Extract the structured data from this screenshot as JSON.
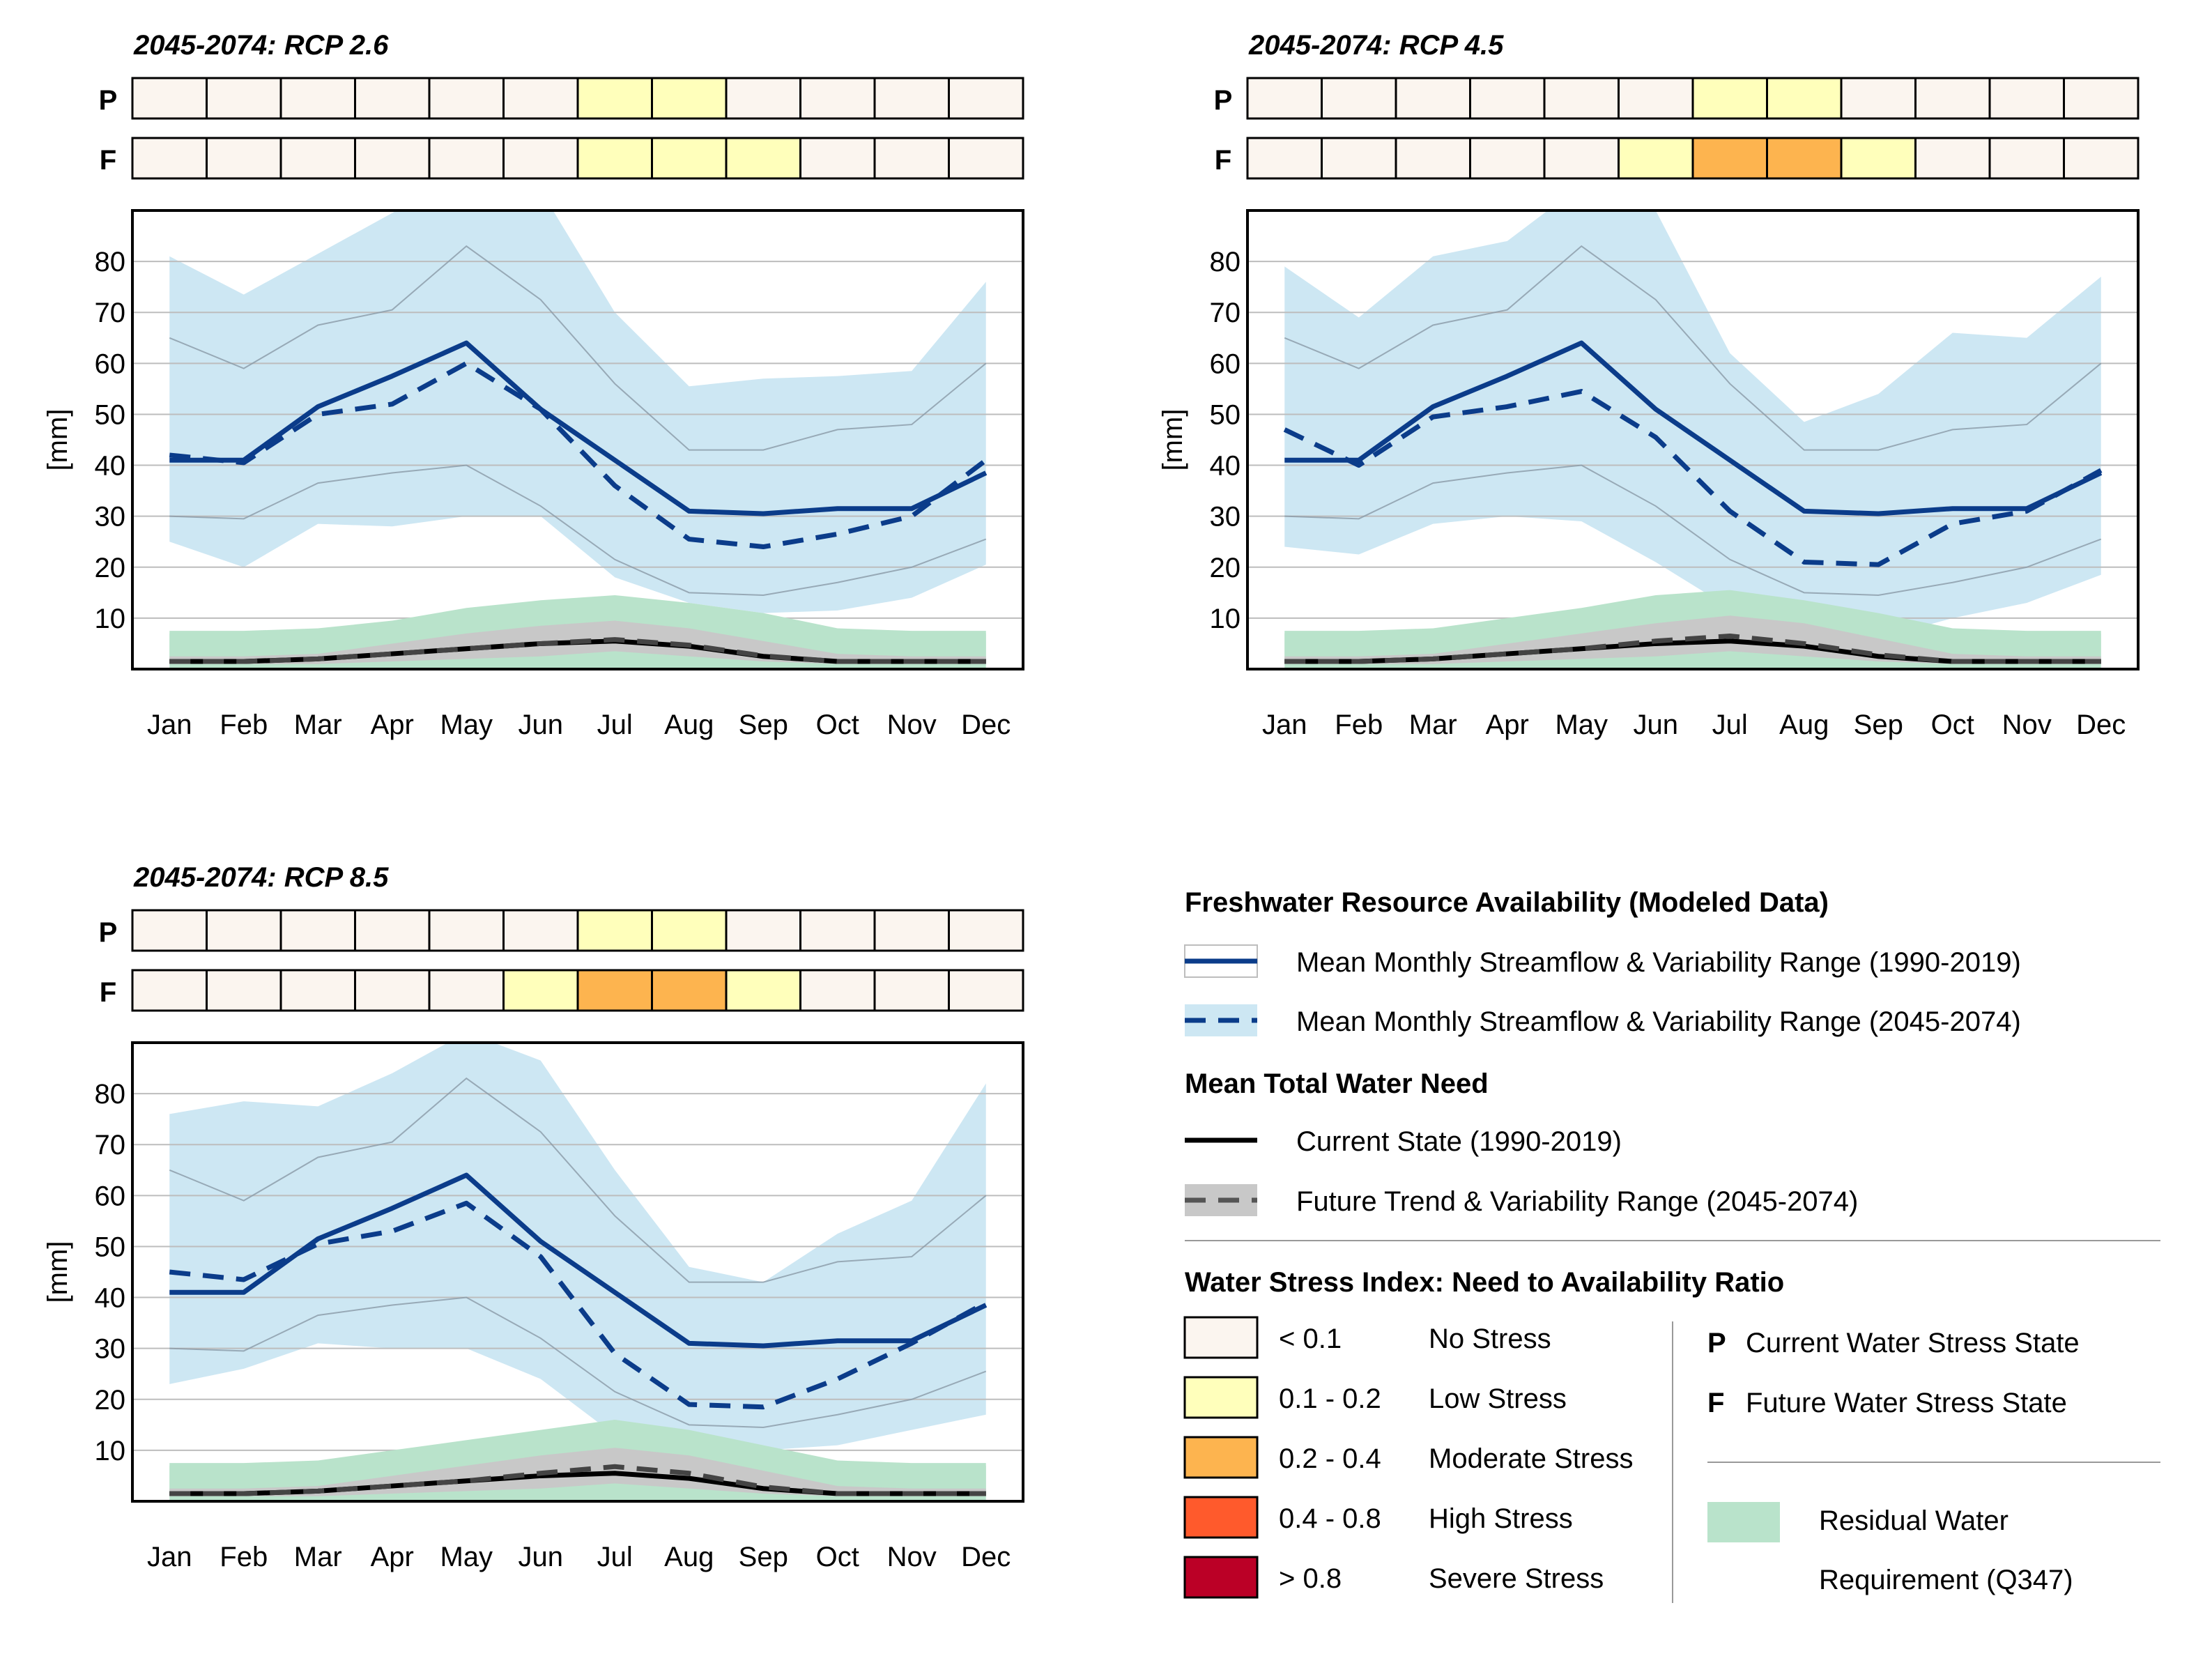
{
  "months": [
    "Jan",
    "Feb",
    "Mar",
    "Apr",
    "May",
    "Jun",
    "Jul",
    "Aug",
    "Sep",
    "Oct",
    "Nov",
    "Dec"
  ],
  "colors": {
    "no_stress": "#fbf5ef",
    "low_stress": "#ffffbb",
    "moderate_stress": "#fdb44f",
    "high_stress": "#ff5a2c",
    "severe_stress": "#bb0026",
    "streamflow": "#0b3c8a",
    "streamflow_range": "#cde7f3",
    "residual": "#b9e3cb",
    "need_range": "#c8c8c8",
    "grid": "#bdbdbd"
  },
  "chart_data": [
    {
      "type": "line",
      "title": "2045-2074: RCP 2.6",
      "ylabel": "[mm]",
      "ylim": [
        0,
        90
      ],
      "yticks": [
        10,
        20,
        30,
        40,
        50,
        60,
        70,
        80
      ],
      "grid": true,
      "categories": [
        "Jan",
        "Feb",
        "Mar",
        "Apr",
        "May",
        "Jun",
        "Jul",
        "Aug",
        "Sep",
        "Oct",
        "Nov",
        "Dec"
      ],
      "stress_rows": [
        {
          "label": "P",
          "levels": [
            0,
            0,
            0,
            0,
            0,
            0,
            1,
            1,
            0,
            0,
            0,
            0
          ]
        },
        {
          "label": "F",
          "levels": [
            0,
            0,
            0,
            0,
            0,
            0,
            1,
            1,
            1,
            0,
            0,
            0
          ]
        }
      ],
      "series": [
        {
          "name": "Mean Monthly Streamflow & Variability Range (1990-2019)",
          "style": "solid",
          "values": [
            41,
            41,
            51.5,
            57.5,
            64,
            51,
            41,
            31,
            30.5,
            31.5,
            31.5,
            38.5
          ]
        },
        {
          "name": "Historic variability range (thin lines)",
          "style": "thin",
          "upper": [
            65,
            59,
            67.5,
            70.5,
            83,
            72.5,
            56,
            43,
            43,
            47,
            48,
            60
          ],
          "lower": [
            30,
            29.5,
            36.5,
            38.5,
            40,
            32,
            21.5,
            15,
            14.5,
            17,
            20,
            25.5
          ]
        },
        {
          "name": "Mean Monthly Streamflow & Variability Range (2045-2074)",
          "style": "dashed",
          "values": [
            42,
            40.5,
            50,
            52,
            60,
            51,
            36,
            25.5,
            24,
            26.5,
            30,
            41
          ],
          "upper": [
            81,
            73.5,
            81.5,
            89.5,
            97,
            94,
            70,
            55.5,
            57,
            57.5,
            58.5,
            76
          ],
          "lower": [
            25,
            20,
            28.5,
            28,
            30,
            30,
            18,
            13,
            11,
            11.5,
            14,
            20.5
          ]
        },
        {
          "name": "Residual Water Requirement (Q347)",
          "values": [
            7,
            7,
            7,
            7,
            7,
            7,
            7,
            7,
            7,
            7,
            7,
            7
          ]
        },
        {
          "name": "Future need range upper (green)",
          "values": [
            7.5,
            7.5,
            8,
            9.5,
            12,
            13.5,
            14.5,
            13,
            11,
            8,
            7.5,
            7.5
          ]
        },
        {
          "name": "Future need range upper (grey)",
          "values": [
            2.5,
            2.5,
            3,
            5,
            7,
            8.5,
            9.5,
            8,
            5.5,
            3,
            2.5,
            2.5
          ]
        },
        {
          "name": "Future need range lower",
          "values": [
            1,
            1,
            1,
            1.5,
            2,
            2.5,
            3.5,
            2.5,
            1.5,
            1,
            1,
            1
          ]
        },
        {
          "name": "Current State (1990-2019)",
          "style": "need-solid",
          "values": [
            1.5,
            1.5,
            2,
            3,
            4,
            5,
            5.5,
            4.5,
            2.5,
            1.5,
            1.5,
            1.5
          ]
        },
        {
          "name": "Future Trend & Variability Range (2045-2074)",
          "style": "need-dashed",
          "values": [
            1.5,
            1.5,
            2,
            3,
            4,
            5,
            5.8,
            4.7,
            2.6,
            1.5,
            1.5,
            1.5
          ]
        }
      ]
    },
    {
      "type": "line",
      "title": "2045-2074: RCP 4.5",
      "ylabel": "[mm]",
      "ylim": [
        0,
        90
      ],
      "yticks": [
        10,
        20,
        30,
        40,
        50,
        60,
        70,
        80
      ],
      "grid": true,
      "categories": [
        "Jan",
        "Feb",
        "Mar",
        "Apr",
        "May",
        "Jun",
        "Jul",
        "Aug",
        "Sep",
        "Oct",
        "Nov",
        "Dec"
      ],
      "stress_rows": [
        {
          "label": "P",
          "levels": [
            0,
            0,
            0,
            0,
            0,
            0,
            1,
            1,
            0,
            0,
            0,
            0
          ]
        },
        {
          "label": "F",
          "levels": [
            0,
            0,
            0,
            0,
            0,
            1,
            2,
            2,
            1,
            0,
            0,
            0
          ]
        }
      ],
      "series": [
        {
          "name": "Mean Monthly Streamflow & Variability Range (1990-2019)",
          "style": "solid",
          "values": [
            41,
            41,
            51.5,
            57.5,
            64,
            51,
            41,
            31,
            30.5,
            31.5,
            31.5,
            38.5
          ]
        },
        {
          "name": "Historic variability range (thin lines)",
          "style": "thin",
          "upper": [
            65,
            59,
            67.5,
            70.5,
            83,
            72.5,
            56,
            43,
            43,
            47,
            48,
            60
          ],
          "lower": [
            30,
            29.5,
            36.5,
            38.5,
            40,
            32,
            21.5,
            15,
            14.5,
            17,
            20,
            25.5
          ]
        },
        {
          "name": "Mean Monthly Streamflow & Variability Range (2045-2074)",
          "style": "dashed",
          "values": [
            47,
            40,
            49.5,
            51.5,
            54.5,
            45.5,
            31,
            21,
            20.5,
            28.5,
            31,
            39
          ],
          "upper": [
            79,
            69,
            81,
            84,
            95,
            90,
            62,
            48.5,
            54,
            66,
            65,
            77
          ],
          "lower": [
            24,
            22.5,
            28.5,
            30,
            29,
            21,
            12,
            9,
            6,
            10,
            13,
            18.5
          ]
        },
        {
          "name": "Residual Water Requirement (Q347)",
          "values": [
            7,
            7,
            7,
            7,
            7,
            7,
            7,
            7,
            7,
            7,
            7,
            7
          ]
        },
        {
          "name": "Future need range upper (green)",
          "values": [
            7.5,
            7.5,
            8,
            10,
            12,
            14.5,
            15.5,
            13.5,
            11,
            8,
            7.5,
            7.5
          ]
        },
        {
          "name": "Future need range upper (grey)",
          "values": [
            2.5,
            2.5,
            3,
            5,
            7,
            9,
            10.5,
            9,
            6,
            3,
            2.5,
            2.5
          ]
        },
        {
          "name": "Future need range lower",
          "values": [
            1,
            1,
            1,
            1.5,
            2,
            2.5,
            3.5,
            2.5,
            1.5,
            1,
            1,
            1
          ]
        },
        {
          "name": "Current State (1990-2019)",
          "style": "need-solid",
          "values": [
            1.5,
            1.5,
            2,
            3,
            4,
            5,
            5.5,
            4.5,
            2.5,
            1.5,
            1.5,
            1.5
          ]
        },
        {
          "name": "Future Trend & Variability Range (2045-2074)",
          "style": "need-dashed",
          "values": [
            1.5,
            1.5,
            2,
            3,
            4,
            5.5,
            6.5,
            5,
            2.8,
            1.5,
            1.5,
            1.5
          ]
        }
      ]
    },
    {
      "type": "line",
      "title": "2045-2074: RCP 8.5",
      "ylabel": "[mm]",
      "ylim": [
        0,
        90
      ],
      "yticks": [
        10,
        20,
        30,
        40,
        50,
        60,
        70,
        80
      ],
      "grid": true,
      "categories": [
        "Jan",
        "Feb",
        "Mar",
        "Apr",
        "May",
        "Jun",
        "Jul",
        "Aug",
        "Sep",
        "Oct",
        "Nov",
        "Dec"
      ],
      "stress_rows": [
        {
          "label": "P",
          "levels": [
            0,
            0,
            0,
            0,
            0,
            0,
            1,
            1,
            0,
            0,
            0,
            0
          ]
        },
        {
          "label": "F",
          "levels": [
            0,
            0,
            0,
            0,
            0,
            1,
            2,
            2,
            1,
            0,
            0,
            0
          ]
        }
      ],
      "series": [
        {
          "name": "Mean Monthly Streamflow & Variability Range (1990-2019)",
          "style": "solid",
          "values": [
            41,
            41,
            51.5,
            57.5,
            64,
            51,
            41,
            31,
            30.5,
            31.5,
            31.5,
            38.5
          ]
        },
        {
          "name": "Historic variability range (thin lines)",
          "style": "thin",
          "upper": [
            65,
            59,
            67.5,
            70.5,
            83,
            72.5,
            56,
            43,
            43,
            47,
            48,
            60
          ],
          "lower": [
            30,
            29.5,
            36.5,
            38.5,
            40,
            32,
            21.5,
            15,
            14.5,
            17,
            20,
            25.5
          ]
        },
        {
          "name": "Mean Monthly Streamflow & Variability Range (2045-2074)",
          "style": "dashed",
          "values": [
            45,
            43.5,
            50.5,
            53,
            58.5,
            48,
            29,
            19,
            18.5,
            24,
            31,
            39
          ],
          "upper": [
            76,
            78.5,
            77.5,
            84,
            92,
            86.5,
            65,
            46,
            43,
            52.5,
            59,
            82
          ],
          "lower": [
            23,
            26,
            31,
            30,
            30,
            24,
            13,
            10,
            10,
            11,
            14,
            17
          ]
        },
        {
          "name": "Residual Water Requirement (Q347)",
          "values": [
            7,
            7,
            7,
            7,
            7,
            7,
            7,
            7,
            7,
            7,
            7,
            7
          ]
        },
        {
          "name": "Future need range upper (green)",
          "values": [
            7.5,
            7.5,
            8,
            10,
            12,
            14,
            16,
            14,
            11,
            8,
            7.5,
            7.5
          ]
        },
        {
          "name": "Future need range upper (grey)",
          "values": [
            2.5,
            2.5,
            3,
            5,
            7,
            9,
            10.5,
            9,
            6,
            3,
            2.5,
            2.5
          ]
        },
        {
          "name": "Future need range lower",
          "values": [
            1,
            1,
            1,
            1.5,
            2,
            2.5,
            3.5,
            2.5,
            1.5,
            1,
            1,
            1
          ]
        },
        {
          "name": "Current State (1990-2019)",
          "style": "need-solid",
          "values": [
            1.5,
            1.5,
            2,
            3,
            4,
            5,
            5.5,
            4.5,
            2.5,
            1.5,
            1.5,
            1.5
          ]
        },
        {
          "name": "Future Trend & Variability Range (2045-2074)",
          "style": "need-dashed",
          "values": [
            1.5,
            1.5,
            2,
            3,
            4,
            5.5,
            6.8,
            5.5,
            2.8,
            1.5,
            1.5,
            1.5
          ]
        }
      ]
    }
  ],
  "legend": {
    "availability_title": "Freshwater Resource Availability (Modeled Data)",
    "streamflow_hist": "Mean Monthly Streamflow & Variability Range (1990-2019)",
    "streamflow_future": "Mean Monthly Streamflow & Variability Range (2045-2074)",
    "need_title": "Mean Total Water Need",
    "need_current": "Current State (1990-2019)",
    "need_future": "Future Trend & Variability Range (2045-2074)",
    "stress_title": "Water Stress Index: Need to Availability Ratio",
    "stress_classes": [
      {
        "range": "< 0.1",
        "label": "No Stress"
      },
      {
        "range": "0.1 - 0.2",
        "label": "Low Stress"
      },
      {
        "range": "0.2 - 0.4",
        "label": "Moderate Stress"
      },
      {
        "range": "0.4 - 0.8",
        "label": "High Stress"
      },
      {
        "range": "> 0.8",
        "label": "Severe Stress"
      }
    ],
    "p_key": "P",
    "p_text": "Current Water Stress State",
    "f_key": "F",
    "f_text": "Future Water Stress State",
    "residual_line1": "Residual Water",
    "residual_line2": "Requirement (Q347)"
  }
}
